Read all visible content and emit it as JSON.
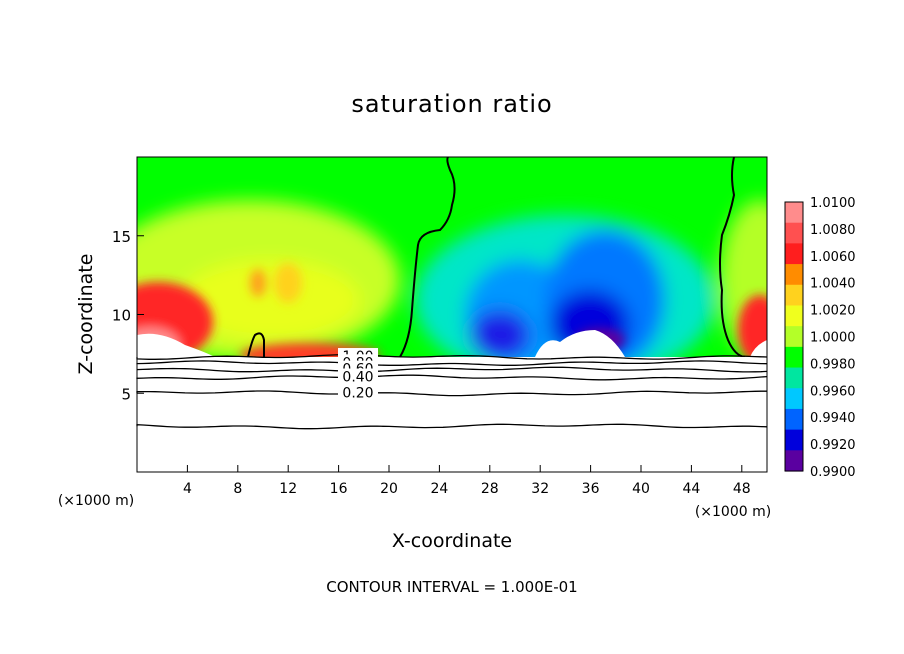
{
  "chart_data": {
    "type": "heatmap",
    "title": "saturation ratio",
    "xlabel": "X-coordinate",
    "ylabel": "Z-coordinate",
    "x_unit_label": "(×1000 m)",
    "footer": "CONTOUR INTERVAL = 1.000E-01",
    "xlim": [
      0,
      50
    ],
    "ylim": [
      0,
      20
    ],
    "x_ticks": [
      4,
      8,
      12,
      16,
      20,
      24,
      28,
      32,
      36,
      40,
      44,
      48
    ],
    "y_ticks": [
      5,
      10,
      15
    ],
    "colorbar": {
      "levels": [
        "1.0100",
        "1.0080",
        "1.0060",
        "1.0040",
        "1.0020",
        "1.0000",
        "0.9980",
        "0.9960",
        "0.9940",
        "0.9920",
        "0.9900"
      ],
      "colors": [
        "#ff8c8c",
        "#ff5050",
        "#ff1e1e",
        "#ff8c00",
        "#ffd21e",
        "#f0ff1e",
        "#b4ff28",
        "#00ff00",
        "#00e6a0",
        "#00c8ff",
        "#0064ff",
        "#0000dc",
        "#5a00a0"
      ]
    },
    "contour_lines": [
      {
        "label": "1.00",
        "z": 7.3
      },
      {
        "label": "0.80",
        "z": 6.9
      },
      {
        "label": "0.60",
        "z": 6.5
      },
      {
        "label": "0.40",
        "z": 6.0
      },
      {
        "label": "0.20",
        "z": 5.0
      },
      {
        "label": "",
        "z": 2.9
      }
    ],
    "field_description_points": [
      {
        "x": 2,
        "z": 10.5,
        "value": 1.007
      },
      {
        "x": 12,
        "z": 11.5,
        "value": 1.003
      },
      {
        "x": 18,
        "z": 17,
        "value": 1.0005
      },
      {
        "x": 30,
        "z": 11,
        "value": 0.993
      },
      {
        "x": 37,
        "z": 11,
        "value": 0.992
      },
      {
        "x": 40,
        "z": 17,
        "value": 1.0003
      },
      {
        "x": 49,
        "z": 9,
        "value": 1.007
      }
    ]
  }
}
